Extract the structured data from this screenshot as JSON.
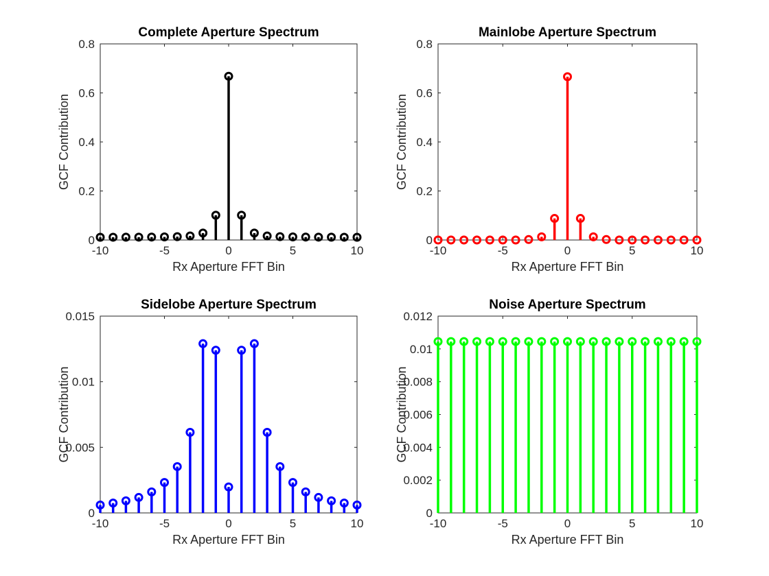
{
  "chart_data": [
    {
      "type": "stem",
      "title": "Complete Aperture Spectrum",
      "xlabel": "Rx Aperture FFT Bin",
      "ylabel": "GCF Contribution",
      "xlim": [
        -10,
        10
      ],
      "ylim": [
        0,
        0.8
      ],
      "xticks": [
        -10,
        -5,
        0,
        5,
        10
      ],
      "xtick_labels": [
        "-10",
        "-5",
        "0",
        "5",
        "10"
      ],
      "yticks": [
        0,
        0.2,
        0.4,
        0.6,
        0.8
      ],
      "ytick_labels": [
        "0",
        "0.2",
        "0.4",
        "0.6",
        "0.8"
      ],
      "grid": false,
      "color": "#000000",
      "x": [
        -10,
        -9,
        -8,
        -7,
        -6,
        -5,
        -4,
        -3,
        -2,
        -1,
        0,
        1,
        2,
        3,
        4,
        5,
        6,
        7,
        8,
        9,
        10
      ],
      "y": [
        0.0111,
        0.0113,
        0.0115,
        0.0117,
        0.012,
        0.0125,
        0.0137,
        0.0166,
        0.0283,
        0.101,
        0.668,
        0.101,
        0.0283,
        0.0166,
        0.0137,
        0.0125,
        0.012,
        0.0117,
        0.0115,
        0.0113,
        0.0111
      ]
    },
    {
      "type": "stem",
      "title": "Mainlobe Aperture Spectrum",
      "xlabel": "Rx Aperture FFT Bin",
      "ylabel": "GCF Contribution",
      "xlim": [
        -10,
        10
      ],
      "ylim": [
        0,
        0.8
      ],
      "xticks": [
        -10,
        -5,
        0,
        5,
        10
      ],
      "xtick_labels": [
        "-10",
        "-5",
        "0",
        "5",
        "10"
      ],
      "yticks": [
        0,
        0.2,
        0.4,
        0.6,
        0.8
      ],
      "ytick_labels": [
        "0",
        "0.2",
        "0.4",
        "0.6",
        "0.8"
      ],
      "grid": false,
      "color": "#ff0000",
      "x": [
        -10,
        -9,
        -8,
        -7,
        -6,
        -5,
        -4,
        -3,
        -2,
        -1,
        0,
        1,
        2,
        3,
        4,
        5,
        6,
        7,
        8,
        9,
        10
      ],
      "y": [
        0,
        0,
        0,
        0,
        0,
        0,
        0,
        0.002,
        0.013,
        0.088,
        0.666,
        0.088,
        0.013,
        0.002,
        0,
        0,
        0,
        0,
        0,
        0,
        0
      ]
    },
    {
      "type": "stem",
      "title": "Sidelobe Aperture Spectrum",
      "xlabel": "Rx Aperture FFT Bin",
      "ylabel": "GCF Contribution",
      "xlim": [
        -10,
        10
      ],
      "ylim": [
        0,
        0.015
      ],
      "xticks": [
        -10,
        -5,
        0,
        5,
        10
      ],
      "xtick_labels": [
        "-10",
        "-5",
        "0",
        "5",
        "10"
      ],
      "yticks": [
        0,
        0.005,
        0.01,
        0.015
      ],
      "ytick_labels": [
        "0",
        "0.005",
        "0.01",
        "0.015"
      ],
      "grid": false,
      "color": "#0000ff",
      "x": [
        -10,
        -9,
        -8,
        -7,
        -6,
        -5,
        -4,
        -3,
        -2,
        -1,
        0,
        1,
        2,
        3,
        4,
        5,
        6,
        7,
        8,
        9,
        10
      ],
      "y": [
        0.0006,
        0.00075,
        0.00092,
        0.00118,
        0.0016,
        0.00232,
        0.00353,
        0.00614,
        0.0129,
        0.0124,
        0.00198,
        0.0124,
        0.0129,
        0.00614,
        0.00353,
        0.00232,
        0.0016,
        0.00118,
        0.00092,
        0.00075,
        0.0006
      ]
    },
    {
      "type": "stem",
      "title": "Noise Aperture Spectrum",
      "xlabel": "Rx Aperture FFT Bin",
      "ylabel": "GCF Contribution",
      "xlim": [
        -10,
        10
      ],
      "ylim": [
        0,
        0.012
      ],
      "xticks": [
        -10,
        -5,
        0,
        5,
        10
      ],
      "xtick_labels": [
        "-10",
        "-5",
        "0",
        "5",
        "10"
      ],
      "yticks": [
        0,
        0.002,
        0.004,
        0.006,
        0.008,
        0.01,
        0.012
      ],
      "ytick_labels": [
        "0",
        "0.002",
        "0.004",
        "0.006",
        "0.008",
        "0.01",
        "0.012"
      ],
      "grid": false,
      "color": "#00ff00",
      "x": [
        -10,
        -9,
        -8,
        -7,
        -6,
        -5,
        -4,
        -3,
        -2,
        -1,
        0,
        1,
        2,
        3,
        4,
        5,
        6,
        7,
        8,
        9,
        10
      ],
      "y": [
        0.01045,
        0.01045,
        0.01045,
        0.01045,
        0.01045,
        0.01045,
        0.01045,
        0.01045,
        0.01045,
        0.01045,
        0.01045,
        0.01045,
        0.01045,
        0.01045,
        0.01045,
        0.01045,
        0.01045,
        0.01045,
        0.01045,
        0.01045,
        0.01045
      ]
    }
  ]
}
